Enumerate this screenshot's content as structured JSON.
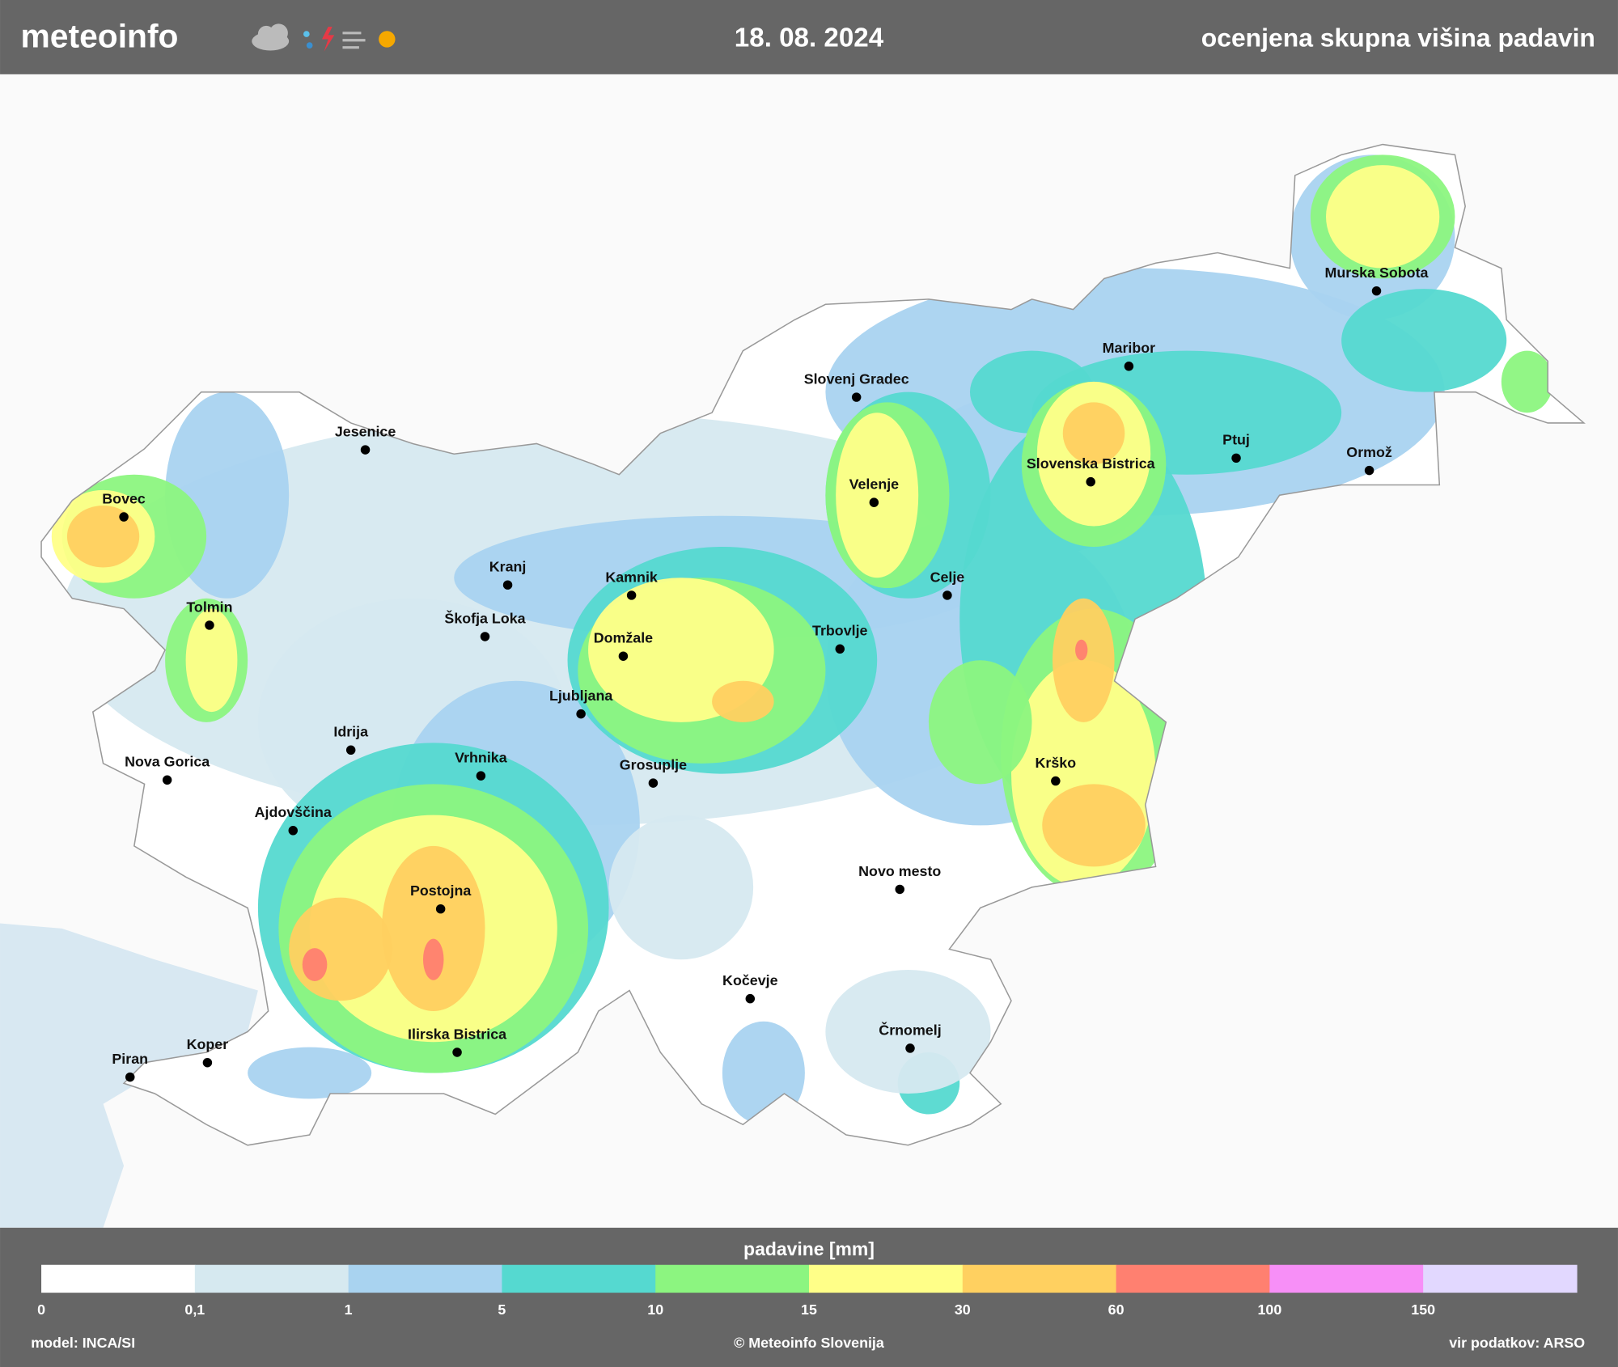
{
  "header": {
    "brand": "meteoinfo",
    "date": "18. 08. 2024",
    "subtitle": "ocenjena skupna višina padavin"
  },
  "map": {
    "cities": [
      "Bovec",
      "Jesenice",
      "Tolmin",
      "Kranj",
      "Škofja Loka",
      "Kamnik",
      "Domžale",
      "Ljubljana",
      "Idrija",
      "Nova Gorica",
      "Vrhnika",
      "Grosuplje",
      "Ajdovščina",
      "Postojna",
      "Ilirska Bistrica",
      "Koper",
      "Piran",
      "Kočevje",
      "Črnomelj",
      "Novo mesto",
      "Krško",
      "Trbovlje",
      "Celje",
      "Velenje",
      "Slovenj Gradec",
      "Slovenska Bistrica",
      "Maribor",
      "Ptuj",
      "Ormož",
      "Murska Sobota"
    ]
  },
  "legend": {
    "title": "padavine [mm]",
    "colors": [
      "#ffffff",
      "#d6e9f0",
      "#a9d3f0",
      "#55d9d0",
      "#8cf580",
      "#ffff88",
      "#ffd060",
      "#ff8070",
      "#f78ff7",
      "#e2d8ff"
    ],
    "ticks": [
      0,
      {
        "value": 0.1,
        "label": "0,1"
      },
      1,
      5,
      10,
      15,
      30,
      60,
      100,
      150
    ]
  },
  "footer": {
    "model": "model: INCA/SI",
    "copyright": "© Meteoinfo Slovenija",
    "source": "vir podatkov: ARSO"
  }
}
